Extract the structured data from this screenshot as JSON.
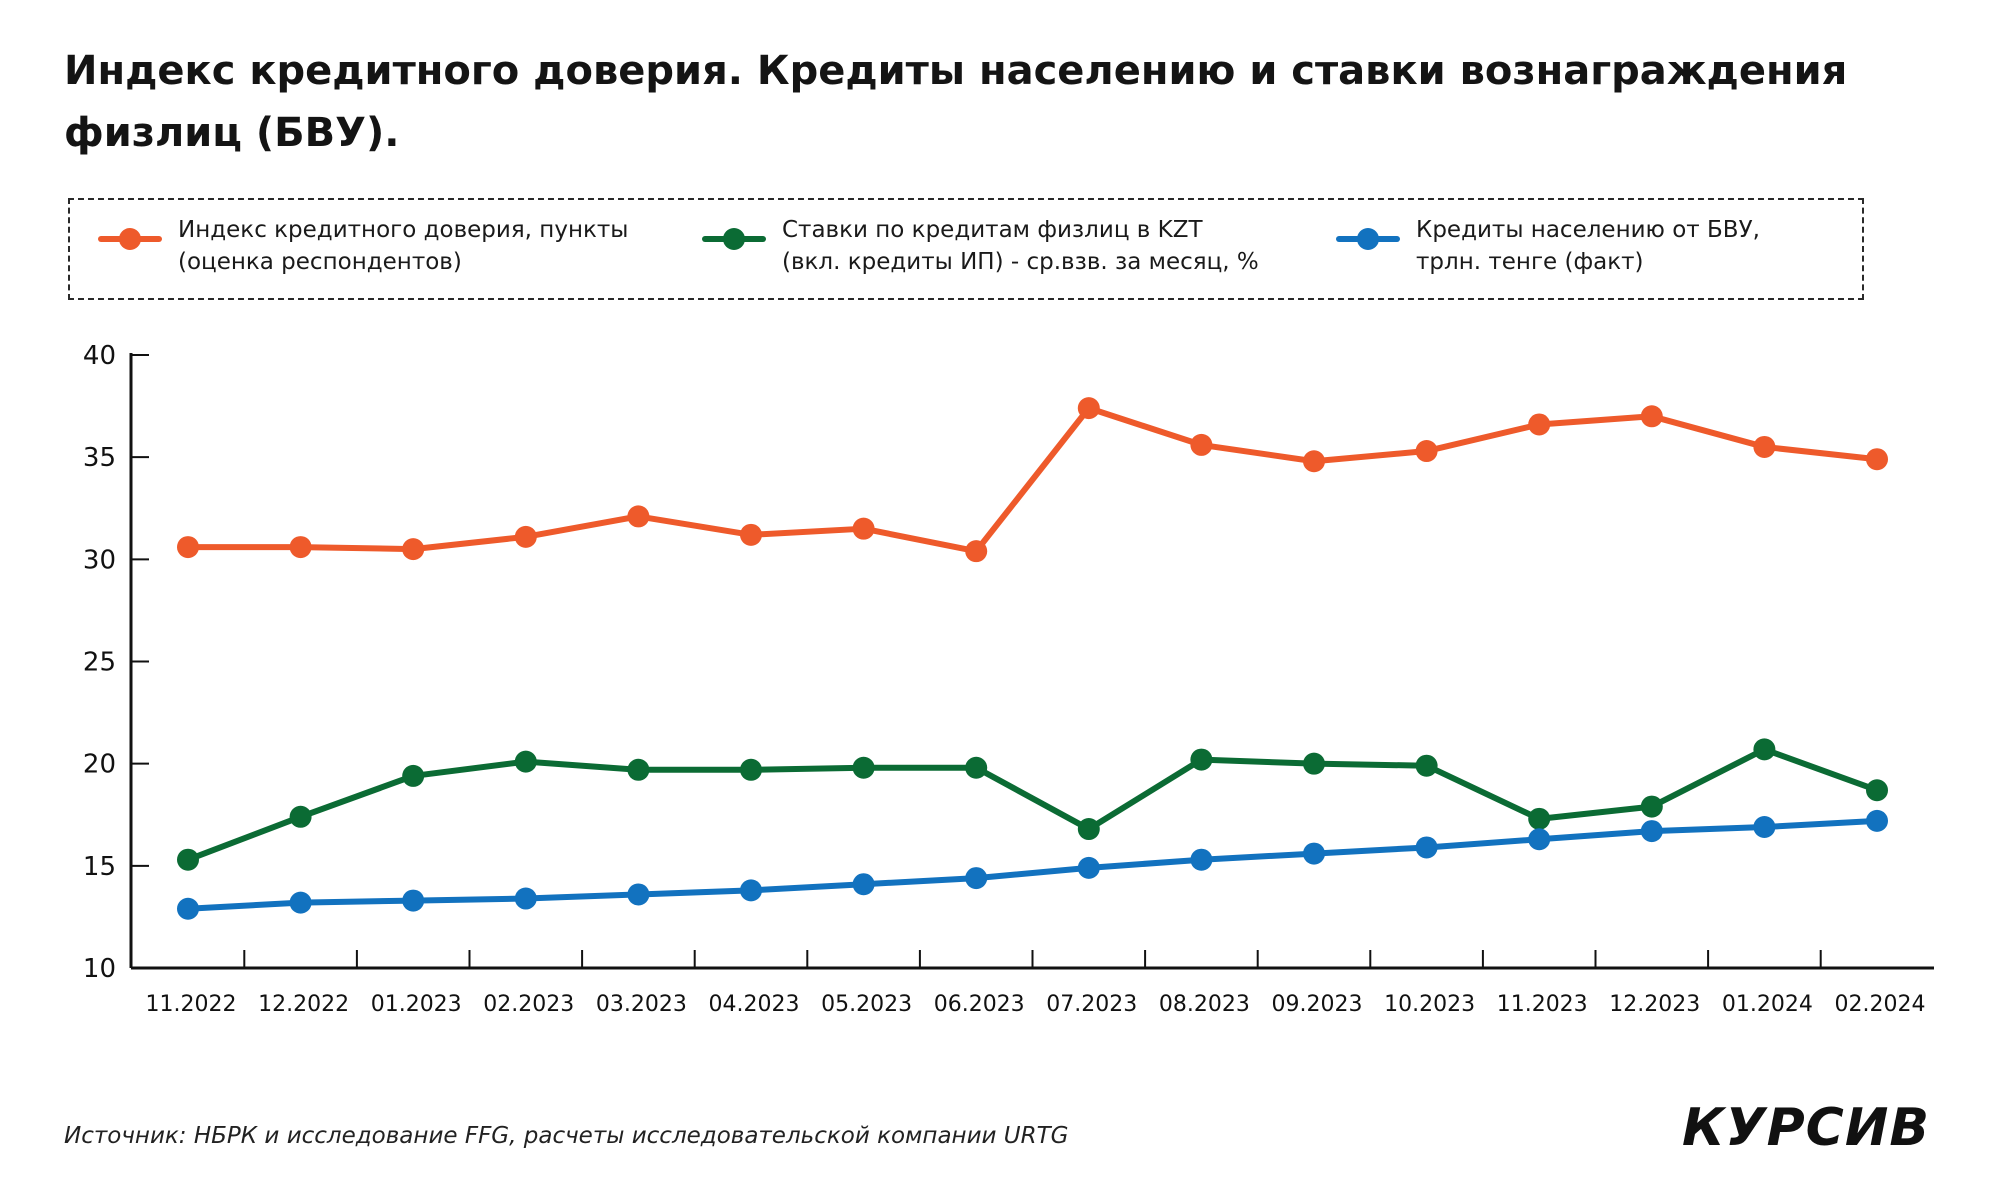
{
  "title": "Индекс кредитного доверия. Кредиты населению и ставки вознаграждения физлиц (БВУ).",
  "legend": [
    {
      "line1": "Индекс кредитного доверия, пункты",
      "line2": "(оценка респондентов)",
      "color": "#EE5A2B"
    },
    {
      "line1": "Ставки по кредитам физлиц в KZT",
      "line2": "(вкл. кредиты ИП) - ср.взв. за месяц, %",
      "color": "#0B6B34"
    },
    {
      "line1": "Кредиты населению от БВУ,",
      "line2": "трлн. тенге (факт)",
      "color": "#1272BF"
    }
  ],
  "source": "Источник: НБРК и исследование FFG, расчеты исследовательской компании URTG",
  "logo": "КУРСИВ",
  "chart_data": {
    "type": "line",
    "categories": [
      "11.2022",
      "12.2022",
      "01.2023",
      "02.2023",
      "03.2023",
      "04.2023",
      "05.2023",
      "06.2023",
      "07.2023",
      "08.2023",
      "09.2023",
      "10.2023",
      "11.2023",
      "12.2023",
      "01.2024",
      "02.2024"
    ],
    "ylim": [
      10,
      40
    ],
    "yticks": [
      10,
      15,
      20,
      25,
      30,
      35,
      40
    ],
    "grid": false,
    "legend_position": "top",
    "series": [
      {
        "name": "Индекс кредитного доверия, пункты (оценка респондентов)",
        "color": "#EE5A2B",
        "values": [
          30.6,
          30.6,
          30.5,
          31.1,
          32.1,
          31.2,
          31.5,
          30.4,
          37.4,
          35.6,
          34.8,
          35.3,
          36.6,
          37.0,
          35.5,
          34.9
        ]
      },
      {
        "name": "Ставки по кредитам физлиц в KZT (вкл. кредиты ИП) - ср.взв. за месяц, %",
        "color": "#0B6B34",
        "values": [
          15.3,
          17.4,
          19.4,
          20.1,
          19.7,
          19.7,
          19.8,
          19.8,
          16.8,
          20.2,
          20.0,
          19.9,
          17.3,
          17.9,
          20.7,
          18.7
        ]
      },
      {
        "name": "Кредиты населению от БВУ, трлн. тенге (факт)",
        "color": "#1272BF",
        "values": [
          12.9,
          13.2,
          13.3,
          13.4,
          13.6,
          13.8,
          14.1,
          14.4,
          14.9,
          15.3,
          15.6,
          15.9,
          16.3,
          16.7,
          16.9,
          17.2
        ]
      }
    ]
  }
}
